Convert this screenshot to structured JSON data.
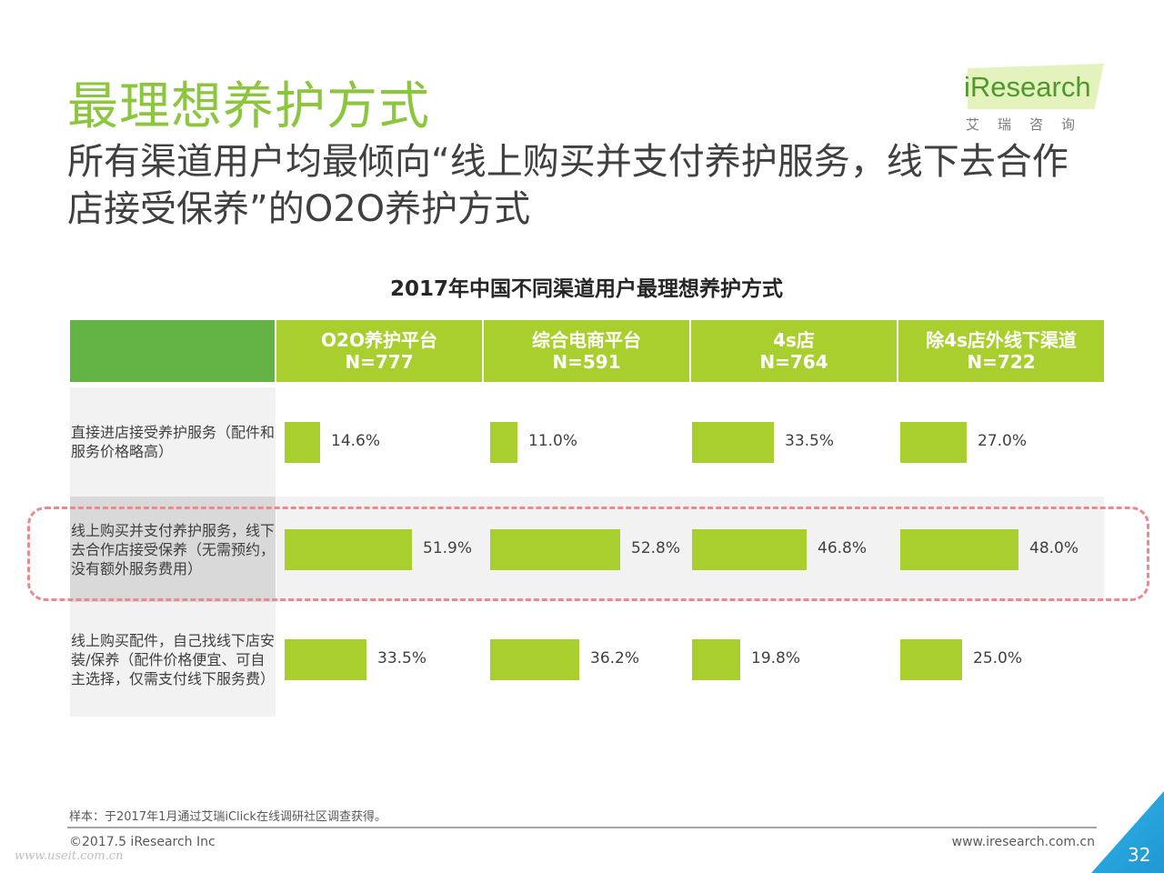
{
  "slide": {
    "title": "最理想养护方式",
    "subtitle": "所有渠道用户均最倾向“线上购买并支付养护服务，线下去合作店接受保养”的O2O养护方式",
    "logo": {
      "word": "iResearch",
      "cn": "艾瑞咨询"
    },
    "note": "样本：于2017年1月通过艾瑞iClick在线调研社区调查获得。",
    "copyright": "©2017.5 iResearch Inc",
    "website": "www.iresearch.com.cn",
    "watermark": "www.useit.com.cn",
    "page_number": "32"
  },
  "chart_data": {
    "type": "bar",
    "title": "2017年中国不同渠道用户最理想养护方式",
    "columns": [
      {
        "name": "O2O养护平台",
        "n": "N=777"
      },
      {
        "name": "综合电商平台",
        "n": "N=591"
      },
      {
        "name": "4s店",
        "n": "N=764"
      },
      {
        "name": "除4s店外线下渠道",
        "n": "N=722"
      }
    ],
    "rows": [
      {
        "label": "直接进店接受养护服务（配件和服务价格略高）",
        "values": [
          14.6,
          11.0,
          33.5,
          27.0
        ],
        "labels": [
          "14.6%",
          "11.0%",
          "33.5%",
          "27.0%"
        ],
        "highlighted": false
      },
      {
        "label": "线上购买并支付养护服务，线下去合作店接受保养（无需预约，没有额外服务费用）",
        "values": [
          51.9,
          52.8,
          46.8,
          48.0
        ],
        "labels": [
          "51.9%",
          "52.8%",
          "46.8%",
          "48.0%"
        ],
        "highlighted": true
      },
      {
        "label": "线上购买配件，自己找线下店安装/保养（配件价格便宜、可自主选择，仅需支付线下服务费）",
        "values": [
          33.5,
          36.2,
          19.8,
          25.0
        ],
        "labels": [
          "33.5%",
          "36.2%",
          "19.8%",
          "25.0%"
        ],
        "highlighted": false
      }
    ],
    "colors": {
      "bar": "#a9cf2f",
      "header": "#a9cf2f",
      "header_left": "#64b445",
      "title": "#8cc63f",
      "highlight_border": "#ea8a8f"
    }
  }
}
